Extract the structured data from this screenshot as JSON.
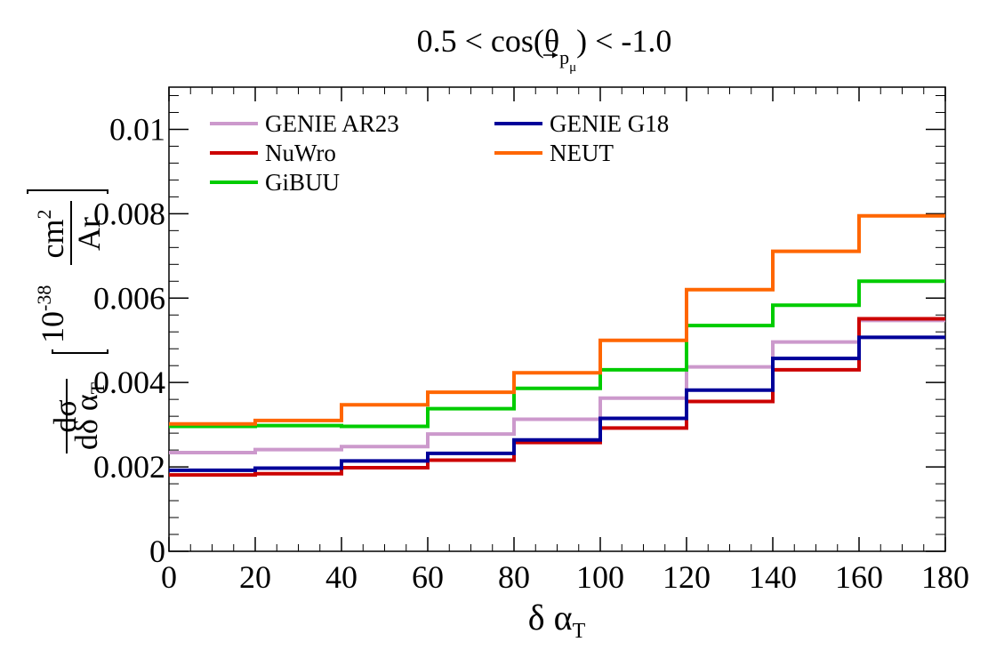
{
  "chart_data": {
    "type": "line",
    "title": {
      "prefix": "0.5 < cos(θ",
      "sub": "p",
      "subsub": "μ",
      "suffix": ") < -1.0"
    },
    "xlabel": {
      "main": "δ α",
      "sub": "T"
    },
    "ylabel": {
      "numerator": "dσ",
      "denominator": "dδ α",
      "denominator_sub": "T",
      "unit_exponent_base": "10",
      "unit_exponent": "-38",
      "unit_num": "cm",
      "unit_num_sup": "2",
      "unit_den": "Ar"
    },
    "xlim": [
      0,
      180
    ],
    "ylim": [
      0,
      0.011
    ],
    "x_ticks": [
      {
        "value": 0,
        "label": "0"
      },
      {
        "value": 20,
        "label": "20"
      },
      {
        "value": 40,
        "label": "40"
      },
      {
        "value": 60,
        "label": "60"
      },
      {
        "value": 80,
        "label": "80"
      },
      {
        "value": 100,
        "label": "100"
      },
      {
        "value": 120,
        "label": "120"
      },
      {
        "value": 140,
        "label": "140"
      },
      {
        "value": 160,
        "label": "160"
      },
      {
        "value": 180,
        "label": "180"
      }
    ],
    "y_ticks": [
      {
        "value": 0,
        "label": "0"
      },
      {
        "value": 0.002,
        "label": "0.002"
      },
      {
        "value": 0.004,
        "label": "0.004"
      },
      {
        "value": 0.006,
        "label": "0.006"
      },
      {
        "value": 0.008,
        "label": "0.008"
      },
      {
        "value": 0.01,
        "label": "0.01"
      }
    ],
    "bin_edges": [
      0,
      20,
      40,
      60,
      80,
      100,
      120,
      140,
      160,
      180
    ],
    "grid": false,
    "legend_position": "top-left",
    "series": [
      {
        "name": "GENIE AR23",
        "color": "#cc99cc",
        "values": [
          0.00234,
          0.00241,
          0.00248,
          0.00278,
          0.00313,
          0.00363,
          0.00437,
          0.00496,
          0.00547
        ]
      },
      {
        "name": "GENIE G18",
        "color": "#000099",
        "values": [
          0.00192,
          0.00197,
          0.00214,
          0.00232,
          0.00264,
          0.00315,
          0.00382,
          0.00457,
          0.00507
        ]
      },
      {
        "name": "NuWro",
        "color": "#cc0000",
        "values": [
          0.00181,
          0.00184,
          0.00198,
          0.00216,
          0.00258,
          0.00292,
          0.00355,
          0.0043,
          0.00551
        ]
      },
      {
        "name": "NEUT",
        "color": "#ff6600",
        "values": [
          0.00302,
          0.0031,
          0.00347,
          0.00377,
          0.00423,
          0.005,
          0.0062,
          0.00711,
          0.00795
        ]
      },
      {
        "name": "GiBUU",
        "color": "#00cc00",
        "values": [
          0.00296,
          0.00298,
          0.00296,
          0.00338,
          0.00386,
          0.0043,
          0.00535,
          0.00583,
          0.0064
        ]
      }
    ]
  }
}
